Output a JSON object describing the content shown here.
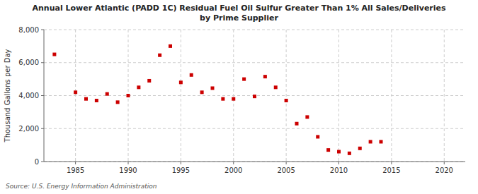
{
  "chart_data": {
    "type": "scatter",
    "title": "Annual Lower Atlantic (PADD 1C) Residual Fuel Oil Sulfur Greater Than 1% All Sales/Deliveries\nby Prime Supplier",
    "ylabel": "Thousand Gallons per Day",
    "source": "Source: U.S. Energy Information Administration",
    "x": [
      1983,
      1985,
      1986,
      1987,
      1988,
      1989,
      1990,
      1991,
      1992,
      1993,
      1994,
      1995,
      1996,
      1997,
      1998,
      1999,
      2000,
      2001,
      2002,
      2003,
      2004,
      2005,
      2006,
      2007,
      2008,
      2009,
      2010,
      2011,
      2012,
      2013,
      2014
    ],
    "values": [
      6500,
      4200,
      3800,
      3700,
      4100,
      3600,
      4000,
      4500,
      4900,
      6450,
      7000,
      4800,
      5250,
      4200,
      4450,
      3800,
      3800,
      5000,
      3950,
      5150,
      4500,
      3700,
      2300,
      2700,
      1500,
      700,
      600,
      500,
      800,
      1200,
      1200
    ],
    "color": "#cc0000",
    "marker": "square",
    "xlim": [
      1982,
      2022
    ],
    "ylim": [
      0,
      8000
    ],
    "xticks": [
      1985,
      1990,
      1995,
      2000,
      2005,
      2010,
      2015,
      2020
    ],
    "yticks": [
      0,
      {
        "value": 2000,
        "label": "2,000"
      },
      {
        "value": 4000,
        "label": "4,000"
      },
      {
        "value": 6000,
        "label": "6,000"
      },
      {
        "value": 8000,
        "label": "8,000"
      }
    ],
    "grid": true
  }
}
